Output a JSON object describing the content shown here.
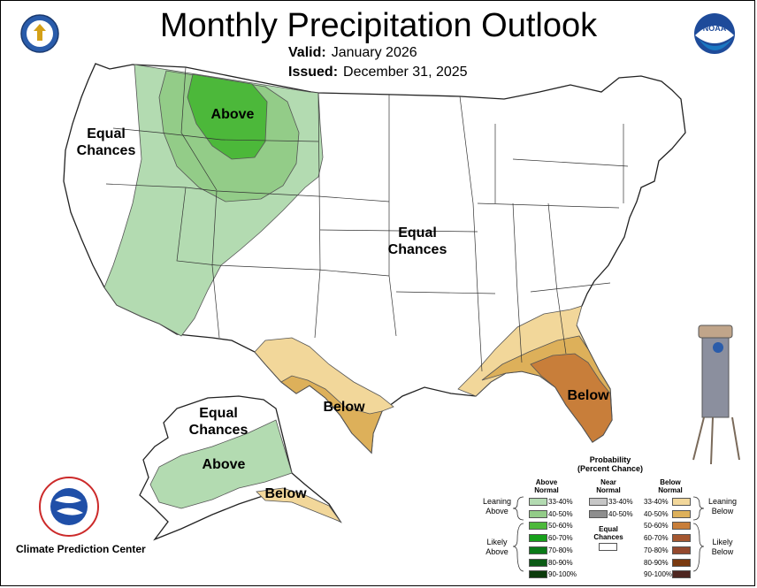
{
  "title": "Monthly Precipitation Outlook",
  "valid_label": "Valid:",
  "valid_value": "January 2026",
  "issued_label": "Issued:",
  "issued_value": "December 31, 2025",
  "map_labels": {
    "equal_chances_west": "Equal Chances",
    "above_north": "Above",
    "equal_chances_central": "Equal Chances",
    "below_texas": "Below",
    "below_florida": "Below",
    "equal_chances_alaska": "Equal Chances",
    "above_alaska": "Above",
    "below_alaska": "Below"
  },
  "credit": "Climate Prediction Center",
  "legend": {
    "title": "Probability",
    "subtitle": "(Percent Chance)",
    "above_header": "Above Normal",
    "near_header": "Near Normal",
    "below_header": "Below Normal",
    "above_ranges": [
      "33-40%",
      "40-50%",
      "50-60%",
      "60-70%",
      "70-80%",
      "80-90%",
      "90-100%"
    ],
    "near_ranges": [
      "33-40%",
      "40-50%"
    ],
    "below_ranges": [
      "33-40%",
      "40-50%",
      "50-60%",
      "60-70%",
      "70-80%",
      "80-90%",
      "90-100%"
    ],
    "equal_chances": "Equal Chances",
    "leaning_above": "Leaning Above",
    "likely_above": "Likely Above",
    "leaning_below": "Leaning Below",
    "likely_below": "Likely Below"
  },
  "colors": {
    "above": [
      "#b3dbb1",
      "#93cc88",
      "#4cb83a",
      "#16a01a",
      "#0a7a18",
      "#0b5b15",
      "#0b3b0b"
    ],
    "near": [
      "#c6c6c6",
      "#8e8e8e"
    ],
    "below": [
      "#f2d79a",
      "#ddb05a",
      "#c87e3a",
      "#a55730",
      "#94492e",
      "#7a3a10",
      "#4e2620"
    ]
  }
}
